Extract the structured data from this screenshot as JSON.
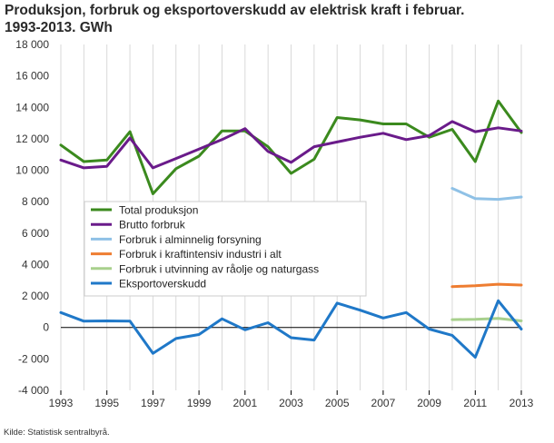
{
  "title": {
    "line1": "Produksjon, forbruk og eksportoverskudd av elektrisk kraft i februar.",
    "line2": "1993-2013. GWh"
  },
  "source": "Kilde: Statistisk sentralbyrå.",
  "chart_data": {
    "type": "line",
    "title": "Produksjon, forbruk og eksportoverskudd av elektrisk kraft i februar. 1993-2013. GWh",
    "xlabel": "",
    "ylabel": "",
    "xlim": [
      1993,
      2013
    ],
    "ylim": [
      -4000,
      18000
    ],
    "x_ticks": [
      1993,
      1995,
      1997,
      1999,
      2001,
      2003,
      2005,
      2007,
      2009,
      2011,
      2013
    ],
    "x_tick_labels": [
      "1993",
      "1995",
      "1997",
      "1999",
      "2001",
      "2003",
      "2005",
      "2007",
      "2009",
      "2011",
      "2013"
    ],
    "y_ticks": [
      -4000,
      -2000,
      0,
      2000,
      4000,
      6000,
      8000,
      10000,
      12000,
      14000,
      16000,
      18000
    ],
    "y_tick_labels": [
      "-4 000",
      "-2 000",
      "0",
      "2 000",
      "4 000",
      "6 000",
      "8 000",
      "10 000",
      "12 000",
      "14 000",
      "16 000",
      "18 000"
    ],
    "grid": "vertical",
    "legend_position": "inside-left-middle",
    "series": [
      {
        "name": "Total produksjon",
        "color": "#3b8a1e",
        "points": [
          [
            1993,
            11600
          ],
          [
            1994,
            10550
          ],
          [
            1995,
            10650
          ],
          [
            1996,
            12450
          ],
          [
            1997,
            8500
          ],
          [
            1998,
            10100
          ],
          [
            1999,
            10900
          ],
          [
            2000,
            12500
          ],
          [
            2001,
            12500
          ],
          [
            2002,
            11500
          ],
          [
            2003,
            9800
          ],
          [
            2004,
            10700
          ],
          [
            2005,
            13350
          ],
          [
            2006,
            13200
          ],
          [
            2007,
            12950
          ],
          [
            2008,
            12950
          ],
          [
            2009,
            12100
          ],
          [
            2010,
            12600
          ],
          [
            2011,
            10550
          ],
          [
            2012,
            14400
          ],
          [
            2013,
            12400
          ]
        ]
      },
      {
        "name": "Brutto forbruk",
        "color": "#6a1b8a",
        "points": [
          [
            1993,
            10650
          ],
          [
            1994,
            10150
          ],
          [
            1995,
            10250
          ],
          [
            1996,
            12050
          ],
          [
            1997,
            10150
          ],
          [
            1998,
            10750
          ],
          [
            1999,
            11350
          ],
          [
            2000,
            11950
          ],
          [
            2001,
            12650
          ],
          [
            2002,
            11200
          ],
          [
            2003,
            10500
          ],
          [
            2004,
            11500
          ],
          [
            2005,
            11800
          ],
          [
            2006,
            12100
          ],
          [
            2007,
            12350
          ],
          [
            2008,
            11950
          ],
          [
            2009,
            12200
          ],
          [
            2010,
            13100
          ],
          [
            2011,
            12450
          ],
          [
            2012,
            12700
          ],
          [
            2013,
            12500
          ]
        ]
      },
      {
        "name": "Forbruk i alminnelig forsyning",
        "color": "#8fc1e6",
        "points": [
          [
            2010,
            8850
          ],
          [
            2011,
            8200
          ],
          [
            2012,
            8150
          ],
          [
            2013,
            8300
          ]
        ]
      },
      {
        "name": "Forbruk i kraftintensiv industri i alt",
        "color": "#ee7d31",
        "points": [
          [
            2010,
            2600
          ],
          [
            2011,
            2650
          ],
          [
            2012,
            2750
          ],
          [
            2013,
            2700
          ]
        ]
      },
      {
        "name": "Forbruk i utvinning av råolje og naturgass",
        "color": "#a8d08d",
        "points": [
          [
            2010,
            500
          ],
          [
            2011,
            520
          ],
          [
            2012,
            580
          ],
          [
            2013,
            420
          ]
        ]
      },
      {
        "name": "Eksportoverskudd",
        "color": "#1f78c8",
        "points": [
          [
            1993,
            950
          ],
          [
            1994,
            400
          ],
          [
            1995,
            420
          ],
          [
            1996,
            400
          ],
          [
            1997,
            -1650
          ],
          [
            1998,
            -700
          ],
          [
            1999,
            -450
          ],
          [
            2000,
            550
          ],
          [
            2001,
            -150
          ],
          [
            2002,
            300
          ],
          [
            2003,
            -650
          ],
          [
            2004,
            -800
          ],
          [
            2005,
            1550
          ],
          [
            2006,
            1100
          ],
          [
            2007,
            600
          ],
          [
            2008,
            950
          ],
          [
            2009,
            -100
          ],
          [
            2010,
            -500
          ],
          [
            2011,
            -1900
          ],
          [
            2012,
            1700
          ],
          [
            2013,
            -100
          ]
        ]
      }
    ]
  }
}
